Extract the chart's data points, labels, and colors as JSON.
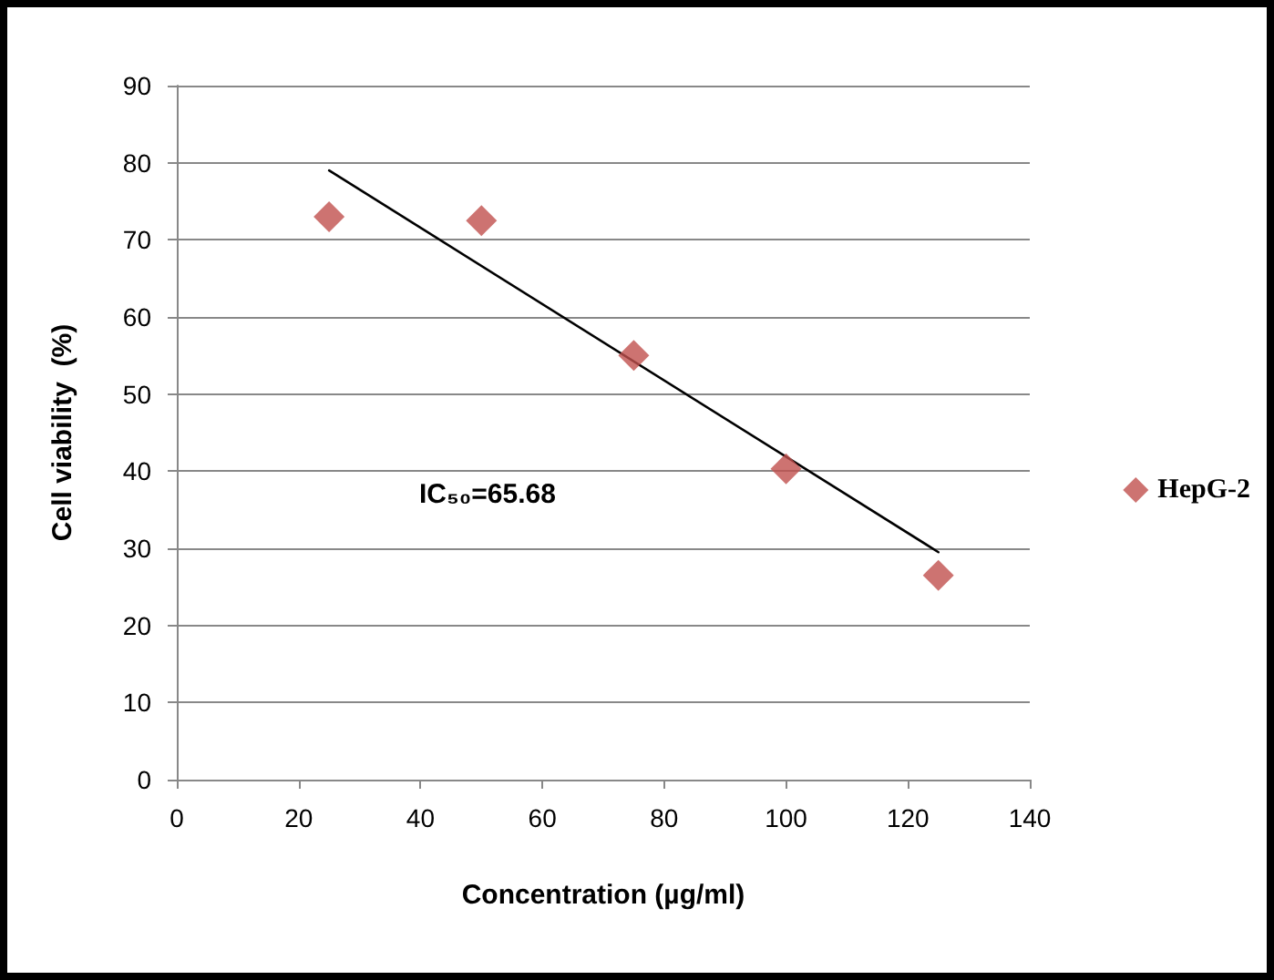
{
  "chart_data": {
    "type": "scatter",
    "xlabel": "Concentration (µg/ml)",
    "ylabel": "Cell viability  (%)",
    "annotations": [
      "IC₅₀=65.68"
    ],
    "series": [
      {
        "name": "HepG-2",
        "color": "#c0504d",
        "x": [
          25,
          50,
          75,
          100,
          125
        ],
        "values": [
          73,
          72.5,
          55,
          40.3,
          26.5
        ],
        "marker": "diamond"
      },
      {
        "type": "line",
        "color": "#000000",
        "x": [
          25,
          125
        ],
        "values": [
          79,
          29.5
        ],
        "marker": "none",
        "line_style": "solid"
      }
    ],
    "xlim": [
      0,
      140
    ],
    "xticks": [
      0,
      20,
      40,
      60,
      80,
      100,
      120,
      140
    ],
    "ylim": [
      0,
      90
    ],
    "yticks": [
      0,
      10,
      20,
      30,
      40,
      50,
      60,
      70,
      80,
      90
    ],
    "grid": "y",
    "legend": "right"
  }
}
